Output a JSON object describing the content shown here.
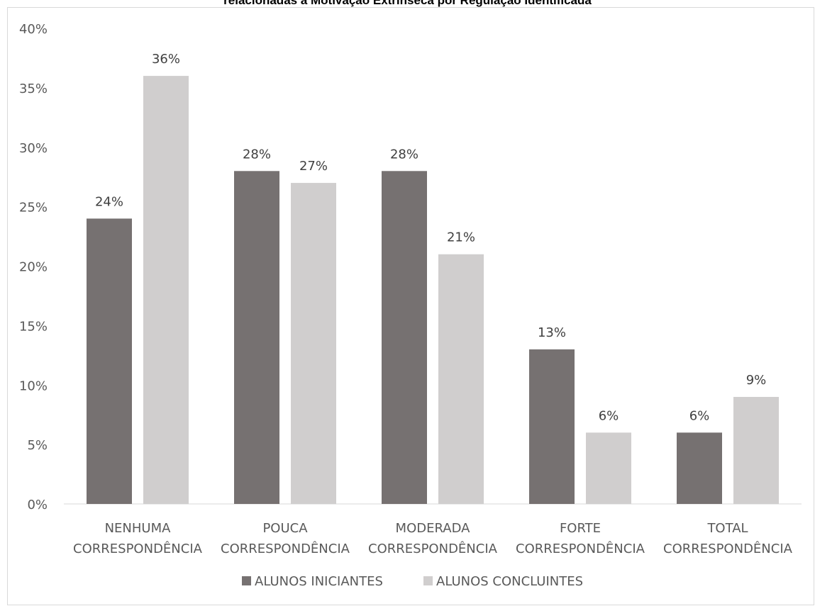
{
  "chart_data": {
    "type": "bar",
    "title": "relacionadas à Motivação Extrínseca por Regulação Identificada",
    "categories": [
      [
        "NENHUMA",
        "CORRESPONDÊNCIA"
      ],
      [
        "POUCA",
        "CORRESPONDÊNCIA"
      ],
      [
        "MODERADA",
        "CORRESPONDÊNCIA"
      ],
      [
        "FORTE",
        "CORRESPONDÊNCIA"
      ],
      [
        "TOTAL",
        "CORRESPONDÊNCIA"
      ]
    ],
    "series": [
      {
        "name": "ALUNOS INICIANTES",
        "color": "#767171",
        "values": [
          24,
          28,
          28,
          13,
          6
        ],
        "labels": [
          "24%",
          "28%",
          "28%",
          "13%",
          "6%"
        ]
      },
      {
        "name": "ALUNOS CONCLUINTES",
        "color": "#d0cece",
        "values": [
          36,
          27,
          21,
          6,
          9
        ],
        "labels": [
          "36%",
          "27%",
          "21%",
          "6%",
          "9%"
        ]
      }
    ],
    "ylim": [
      0,
      40
    ],
    "yticks": [
      0,
      5,
      10,
      15,
      20,
      25,
      30,
      35,
      40
    ],
    "ytick_labels": [
      "0%",
      "5%",
      "10%",
      "15%",
      "20%",
      "25%",
      "30%",
      "35%",
      "40%"
    ],
    "xlabel": "",
    "ylabel": "",
    "grid": false,
    "legend": "bottom-center"
  }
}
